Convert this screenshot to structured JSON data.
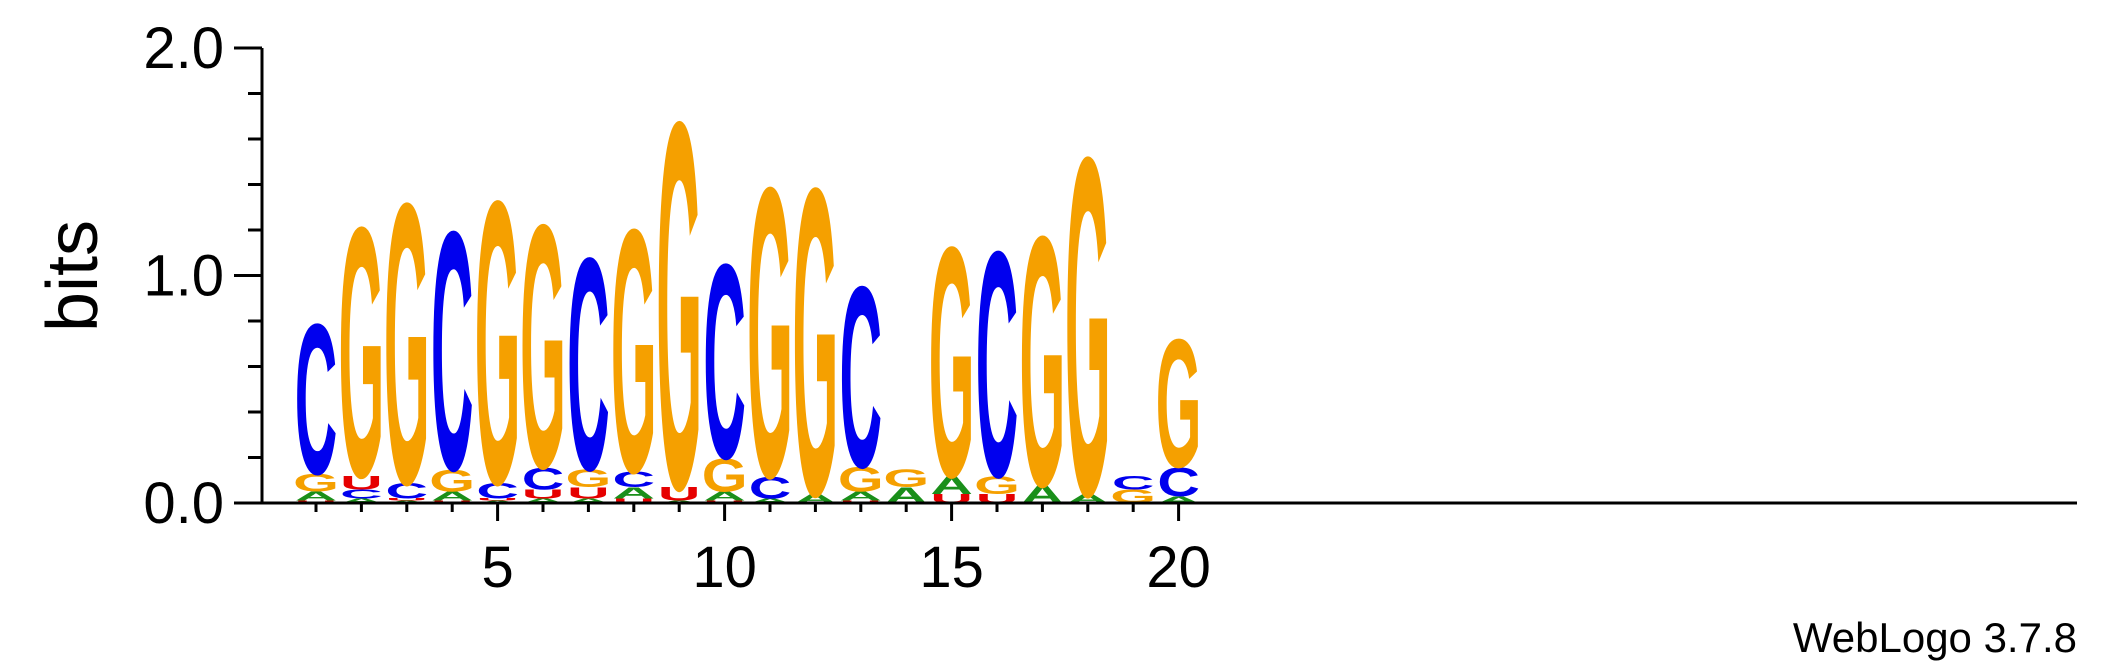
{
  "chart_data": {
    "type": "sequence-logo",
    "ylabel": "bits",
    "ylim": [
      0,
      2.0
    ],
    "yticks": [
      "0.0",
      "1.0",
      "2.0"
    ],
    "xticks": [
      5,
      10,
      15,
      20
    ],
    "positions": 20,
    "credit": "WebLogo 3.7.8",
    "colors": {
      "A": "#1a8f1a",
      "C": "#0000ee",
      "G": "#f5a000",
      "U": "#e60000"
    },
    "columns": [
      {
        "position": 1,
        "letters": [
          {
            "l": "U",
            "h": 0.01
          },
          {
            "l": "A",
            "h": 0.04
          },
          {
            "l": "G",
            "h": 0.08
          },
          {
            "l": "C",
            "h": 0.68
          }
        ]
      },
      {
        "position": 2,
        "letters": [
          {
            "l": "A",
            "h": 0.02
          },
          {
            "l": "C",
            "h": 0.04
          },
          {
            "l": "U",
            "h": 0.06
          },
          {
            "l": "G",
            "h": 1.13
          }
        ]
      },
      {
        "position": 3,
        "letters": [
          {
            "l": "A",
            "h": 0.01
          },
          {
            "l": "U",
            "h": 0.01
          },
          {
            "l": "C",
            "h": 0.07
          },
          {
            "l": "G",
            "h": 1.27
          }
        ]
      },
      {
        "position": 4,
        "letters": [
          {
            "l": "U",
            "h": 0.01
          },
          {
            "l": "A",
            "h": 0.04
          },
          {
            "l": "G",
            "h": 0.1
          },
          {
            "l": "C",
            "h": 1.08
          }
        ]
      },
      {
        "position": 5,
        "letters": [
          {
            "l": "A",
            "h": 0.01
          },
          {
            "l": "U",
            "h": 0.01
          },
          {
            "l": "C",
            "h": 0.07
          },
          {
            "l": "G",
            "h": 1.28
          }
        ]
      },
      {
        "position": 6,
        "letters": [
          {
            "l": "A",
            "h": 0.02
          },
          {
            "l": "U",
            "h": 0.04
          },
          {
            "l": "C",
            "h": 0.1
          },
          {
            "l": "G",
            "h": 1.1
          }
        ]
      },
      {
        "position": 7,
        "letters": [
          {
            "l": "A",
            "h": 0.02
          },
          {
            "l": "U",
            "h": 0.05
          },
          {
            "l": "G",
            "h": 0.08
          },
          {
            "l": "C",
            "h": 0.96
          }
        ]
      },
      {
        "position": 8,
        "letters": [
          {
            "l": "U",
            "h": 0.02
          },
          {
            "l": "A",
            "h": 0.05
          },
          {
            "l": "C",
            "h": 0.07
          },
          {
            "l": "G",
            "h": 1.1
          }
        ]
      },
      {
        "position": 9,
        "letters": [
          {
            "l": "A",
            "h": 0.01
          },
          {
            "l": "U",
            "h": 0.06
          },
          {
            "l": "G",
            "h": 1.66
          }
        ]
      },
      {
        "position": 10,
        "letters": [
          {
            "l": "U",
            "h": 0.01
          },
          {
            "l": "A",
            "h": 0.04
          },
          {
            "l": "G",
            "h": 0.15
          },
          {
            "l": "C",
            "h": 0.88
          }
        ]
      },
      {
        "position": 11,
        "letters": [
          {
            "l": "A",
            "h": 0.02
          },
          {
            "l": "C",
            "h": 0.1
          },
          {
            "l": "G",
            "h": 1.31
          }
        ]
      },
      {
        "position": 12,
        "letters": [
          {
            "l": "A",
            "h": 0.04
          },
          {
            "l": "G",
            "h": 1.39
          }
        ]
      },
      {
        "position": 13,
        "letters": [
          {
            "l": "U",
            "h": 0.01
          },
          {
            "l": "A",
            "h": 0.04
          },
          {
            "l": "G",
            "h": 0.11
          },
          {
            "l": "C",
            "h": 0.82
          }
        ]
      },
      {
        "position": 14,
        "letters": [
          {
            "l": "A",
            "h": 0.07
          },
          {
            "l": "G",
            "h": 0.08
          }
        ]
      },
      {
        "position": 15,
        "letters": [
          {
            "l": "U",
            "h": 0.04
          },
          {
            "l": "A",
            "h": 0.08
          },
          {
            "l": "G",
            "h": 1.04
          }
        ]
      },
      {
        "position": 16,
        "letters": [
          {
            "l": "U",
            "h": 0.04
          },
          {
            "l": "G",
            "h": 0.08
          },
          {
            "l": "C",
            "h": 1.02
          }
        ]
      },
      {
        "position": 17,
        "letters": [
          {
            "l": "A",
            "h": 0.08
          },
          {
            "l": "G",
            "h": 1.13
          }
        ]
      },
      {
        "position": 18,
        "letters": [
          {
            "l": "A",
            "h": 0.04
          },
          {
            "l": "G",
            "h": 1.53
          }
        ]
      },
      {
        "position": 19,
        "letters": [
          {
            "l": "G",
            "h": 0.06
          },
          {
            "l": "C",
            "h": 0.06
          }
        ]
      },
      {
        "position": 20,
        "letters": [
          {
            "l": "A",
            "h": 0.03
          },
          {
            "l": "C",
            "h": 0.13
          },
          {
            "l": "G",
            "h": 0.58
          }
        ]
      }
    ]
  }
}
